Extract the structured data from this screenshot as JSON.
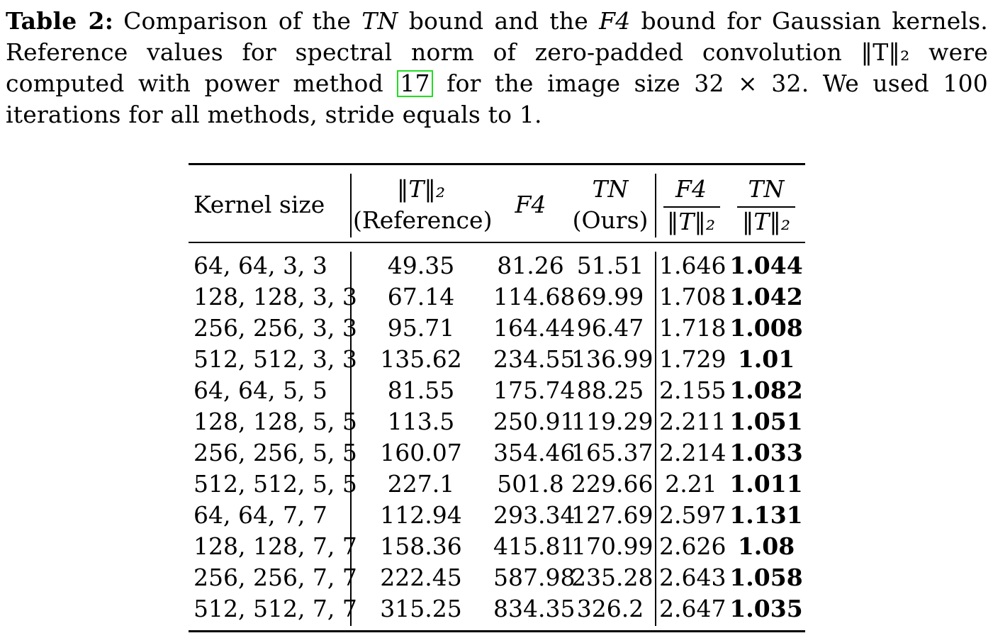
{
  "caption": {
    "label": "Table 2:",
    "text_part1": "Comparison of the ",
    "tn_symbol": "TN",
    "text_part2": " bound and the ",
    "f4_symbol": "F4",
    "text_part3": " bound for Gaussian kernels. Reference values for spectral norm of zero-padded convolution ‖T‖₂ were computed with power method ",
    "citation": "17",
    "text_part4": " for the image size 32 × 32. We used 100 iterations for all methods, stride equals to 1."
  },
  "table": {
    "headers": {
      "kernel": "Kernel size",
      "ref_top": "‖T‖₂",
      "ref_bottom": "(Reference)",
      "f4": "F4",
      "tn_top": "TN",
      "tn_bottom": "(Ours)",
      "ratio1_num": "F4",
      "ratio1_den": "‖T‖₂",
      "ratio2_num": "TN",
      "ratio2_den": "‖T‖₂"
    },
    "rows": [
      {
        "kernel": "64, 64, 3, 3",
        "ref": "49.35",
        "f4": "81.26",
        "tn": "51.51",
        "r1": "1.646",
        "r2": "1.044"
      },
      {
        "kernel": "128, 128, 3, 3",
        "ref": "67.14",
        "f4": "114.68",
        "tn": "69.99",
        "r1": "1.708",
        "r2": "1.042"
      },
      {
        "kernel": "256, 256, 3, 3",
        "ref": "95.71",
        "f4": "164.44",
        "tn": "96.47",
        "r1": "1.718",
        "r2": "1.008"
      },
      {
        "kernel": "512, 512, 3, 3",
        "ref": "135.62",
        "f4": "234.55",
        "tn": "136.99",
        "r1": "1.729",
        "r2": "1.01"
      },
      {
        "kernel": "64, 64, 5, 5",
        "ref": "81.55",
        "f4": "175.74",
        "tn": "88.25",
        "r1": "2.155",
        "r2": "1.082"
      },
      {
        "kernel": "128, 128, 5, 5",
        "ref": "113.5",
        "f4": "250.91",
        "tn": "119.29",
        "r1": "2.211",
        "r2": "1.051"
      },
      {
        "kernel": "256, 256, 5, 5",
        "ref": "160.07",
        "f4": "354.46",
        "tn": "165.37",
        "r1": "2.214",
        "r2": "1.033"
      },
      {
        "kernel": "512, 512, 5, 5",
        "ref": "227.1",
        "f4": "501.8",
        "tn": "229.66",
        "r1": "2.21",
        "r2": "1.011"
      },
      {
        "kernel": "64, 64, 7, 7",
        "ref": "112.94",
        "f4": "293.34",
        "tn": "127.69",
        "r1": "2.597",
        "r2": "1.131"
      },
      {
        "kernel": "128, 128, 7, 7",
        "ref": "158.36",
        "f4": "415.81",
        "tn": "170.99",
        "r1": "2.626",
        "r2": "1.08"
      },
      {
        "kernel": "256, 256, 7, 7",
        "ref": "222.45",
        "f4": "587.98",
        "tn": "235.28",
        "r1": "2.643",
        "r2": "1.058"
      },
      {
        "kernel": "512, 512, 7, 7",
        "ref": "315.25",
        "f4": "834.35",
        "tn": "326.2",
        "r1": "2.647",
        "r2": "1.035"
      }
    ]
  }
}
